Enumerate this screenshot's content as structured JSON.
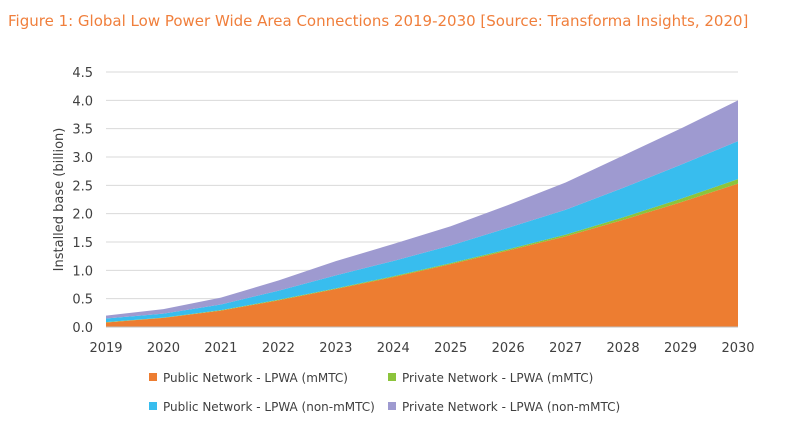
{
  "chart_data": {
    "type": "area",
    "stacked": true,
    "title": "Figure 1: Global Low Power Wide Area Connections 2019-2030 [Source: Transforma Insights, 2020]",
    "ylabel": "Installed base (billion)",
    "xlabel": "",
    "ylim": [
      0,
      4.5
    ],
    "yticks": [
      "0.0",
      "0.5",
      "1.0",
      "1.5",
      "2.0",
      "2.5",
      "3.0",
      "3.5",
      "4.0",
      "4.5"
    ],
    "categories": [
      "2019",
      "2020",
      "2021",
      "2022",
      "2023",
      "2024",
      "2025",
      "2026",
      "2027",
      "2028",
      "2029",
      "2030"
    ],
    "grid": true,
    "legend_position": "bottom",
    "series": [
      {
        "name": "Public Network - LPWA (mMTC)",
        "color": "#ed7d31",
        "values": [
          0.08,
          0.16,
          0.29,
          0.47,
          0.67,
          0.88,
          1.11,
          1.35,
          1.6,
          1.89,
          2.2,
          2.53
        ]
      },
      {
        "name": "Private Network - LPWA (mMTC)",
        "color": "#8cc43c",
        "values": [
          0.005,
          0.006,
          0.008,
          0.01,
          0.012,
          0.015,
          0.018,
          0.022,
          0.03,
          0.045,
          0.06,
          0.08
        ]
      },
      {
        "name": "Public Network - LPWA (non-mMTC)",
        "color": "#38bdee",
        "values": [
          0.065,
          0.07,
          0.1,
          0.16,
          0.23,
          0.27,
          0.31,
          0.38,
          0.44,
          0.52,
          0.6,
          0.67
        ]
      },
      {
        "name": "Private Network - LPWA (non-mMTC)",
        "color": "#9e9ad0",
        "values": [
          0.05,
          0.08,
          0.12,
          0.18,
          0.25,
          0.3,
          0.34,
          0.4,
          0.48,
          0.57,
          0.64,
          0.72
        ]
      }
    ],
    "legend_order": [
      0,
      1,
      2,
      3
    ]
  }
}
